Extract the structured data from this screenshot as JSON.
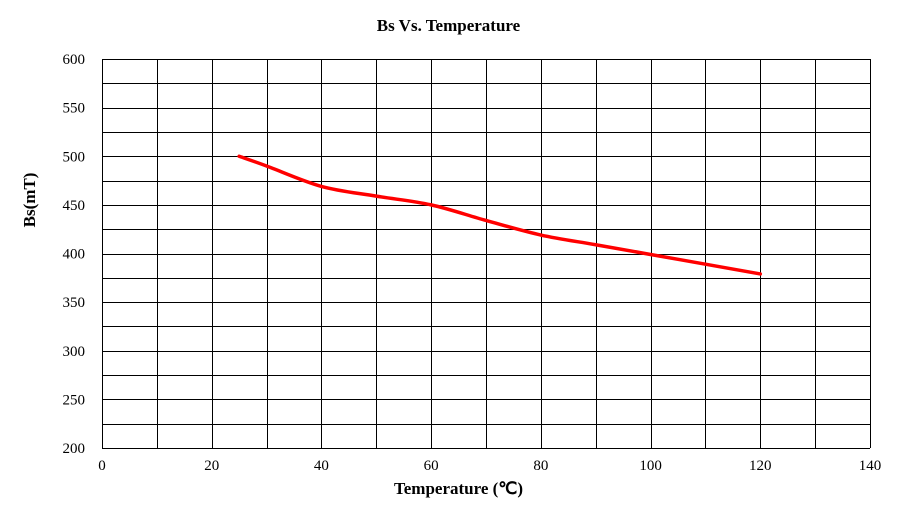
{
  "chart_data": {
    "type": "line",
    "title": "Bs Vs. Temperature",
    "xlabel": "Temperature (℃)",
    "ylabel": "Bs(mT)",
    "xlim": [
      0,
      140
    ],
    "ylim": [
      200,
      600
    ],
    "x_ticks": [
      0,
      20,
      40,
      60,
      80,
      100,
      120,
      140
    ],
    "y_ticks": [
      200,
      250,
      300,
      350,
      400,
      450,
      500,
      550,
      600
    ],
    "grid": true,
    "legend": "none",
    "series": [
      {
        "color": "#ff0000",
        "x": [
          25,
          30,
          40,
          50,
          60,
          70,
          80,
          90,
          100,
          110,
          120
        ],
        "y": [
          500,
          490,
          469,
          459,
          450,
          434,
          419,
          409,
          399,
          389,
          379
        ]
      }
    ]
  }
}
